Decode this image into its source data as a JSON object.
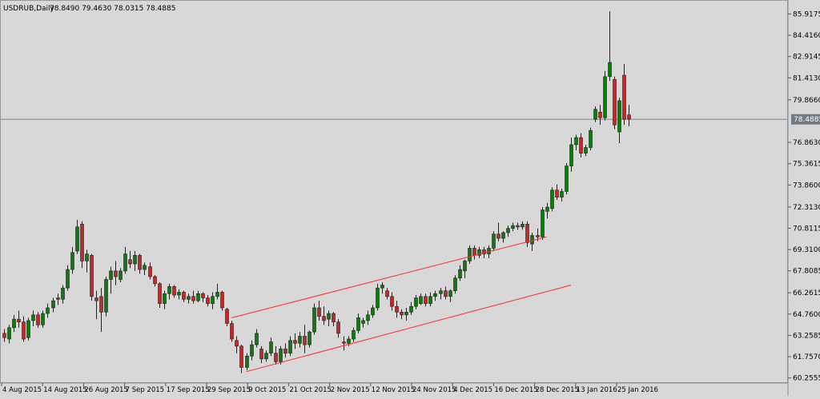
{
  "header": {
    "symbol": "USDRUB,Daily",
    "ohlc": "78.8490 79.4630 78.0315 78.4885"
  },
  "chart_data": {
    "type": "candlestick",
    "title": "USDRUB,Daily",
    "ylim": [
      59.9,
      86.9
    ],
    "current_price": 78.4885,
    "current_price_label": "78.4885",
    "y_ticks": [
      "85.9175",
      "84.4160",
      "82.9145",
      "81.4130",
      "79.8660",
      "76.8630",
      "75.3615",
      "73.8600",
      "72.3130",
      "70.8115",
      "69.3100",
      "67.8085",
      "66.2615",
      "64.7600",
      "63.2585",
      "61.7570",
      "60.2555"
    ],
    "x_ticks": [
      "4 Aug 2015",
      "14 Aug 2015",
      "26 Aug 2015",
      "7 Sep 2015",
      "17 Sep 2015",
      "29 Sep 2015",
      "9 Oct 2015",
      "21 Oct 2015",
      "2 Nov 2015",
      "12 Nov 2015",
      "24 Nov 2015",
      "4 Dec 2015",
      "16 Dec 2015",
      "28 Dec 2015",
      "13 Jan 2016",
      "25 Jan 2016"
    ],
    "colors": {
      "background": "#d8d8d8",
      "bull": "#0c7a0c",
      "bear": "#c02a2a",
      "wick": "#222222",
      "trendline": "#ff2a2a",
      "price_line": "#7a8a94",
      "label_bg": "#6e7b84",
      "label_text": "#ffffff"
    },
    "candles": [
      {
        "o": 63.4,
        "h": 63.7,
        "l": 62.8,
        "c": 63.1
      },
      {
        "o": 63.0,
        "h": 64.0,
        "l": 62.7,
        "c": 63.8
      },
      {
        "o": 63.8,
        "h": 64.7,
        "l": 63.5,
        "c": 64.4
      },
      {
        "o": 64.4,
        "h": 65.0,
        "l": 63.8,
        "c": 64.2
      },
      {
        "o": 64.2,
        "h": 64.6,
        "l": 62.8,
        "c": 63.0
      },
      {
        "o": 63.1,
        "h": 64.5,
        "l": 62.9,
        "c": 64.3
      },
      {
        "o": 64.3,
        "h": 65.0,
        "l": 63.9,
        "c": 64.7
      },
      {
        "o": 64.7,
        "h": 64.9,
        "l": 63.8,
        "c": 64.0
      },
      {
        "o": 64.0,
        "h": 65.0,
        "l": 63.8,
        "c": 64.8
      },
      {
        "o": 64.8,
        "h": 65.5,
        "l": 64.5,
        "c": 65.2
      },
      {
        "o": 65.2,
        "h": 65.9,
        "l": 64.9,
        "c": 65.7
      },
      {
        "o": 65.8,
        "h": 66.2,
        "l": 65.4,
        "c": 65.9
      },
      {
        "o": 65.8,
        "h": 66.8,
        "l": 65.5,
        "c": 66.6
      },
      {
        "o": 66.6,
        "h": 68.2,
        "l": 66.4,
        "c": 67.9
      },
      {
        "o": 67.9,
        "h": 69.5,
        "l": 67.6,
        "c": 69.1
      },
      {
        "o": 69.2,
        "h": 71.4,
        "l": 69.0,
        "c": 70.9
      },
      {
        "o": 71.1,
        "h": 71.3,
        "l": 68.0,
        "c": 68.5
      },
      {
        "o": 68.5,
        "h": 69.3,
        "l": 67.7,
        "c": 69.0
      },
      {
        "o": 68.9,
        "h": 69.0,
        "l": 65.7,
        "c": 66.0
      },
      {
        "o": 65.9,
        "h": 66.4,
        "l": 64.4,
        "c": 65.7
      },
      {
        "o": 66.0,
        "h": 66.6,
        "l": 63.5,
        "c": 64.9
      },
      {
        "o": 64.9,
        "h": 67.4,
        "l": 64.6,
        "c": 67.2
      },
      {
        "o": 67.2,
        "h": 68.1,
        "l": 66.2,
        "c": 67.8
      },
      {
        "o": 67.8,
        "h": 68.5,
        "l": 66.8,
        "c": 67.4
      },
      {
        "o": 67.2,
        "h": 68.0,
        "l": 67.0,
        "c": 67.8
      },
      {
        "o": 67.8,
        "h": 69.5,
        "l": 67.6,
        "c": 69.0
      },
      {
        "o": 68.6,
        "h": 69.2,
        "l": 68.0,
        "c": 68.3
      },
      {
        "o": 68.3,
        "h": 69.2,
        "l": 67.8,
        "c": 68.9
      },
      {
        "o": 68.9,
        "h": 69.0,
        "l": 67.6,
        "c": 67.9
      },
      {
        "o": 67.9,
        "h": 68.4,
        "l": 67.5,
        "c": 68.2
      },
      {
        "o": 68.1,
        "h": 68.4,
        "l": 67.2,
        "c": 67.4
      },
      {
        "o": 67.4,
        "h": 67.5,
        "l": 66.7,
        "c": 66.9
      },
      {
        "o": 66.9,
        "h": 67.0,
        "l": 65.2,
        "c": 65.5
      },
      {
        "o": 65.5,
        "h": 66.4,
        "l": 65.1,
        "c": 66.2
      },
      {
        "o": 66.2,
        "h": 66.9,
        "l": 65.8,
        "c": 66.7
      },
      {
        "o": 66.7,
        "h": 66.8,
        "l": 65.9,
        "c": 66.1
      },
      {
        "o": 66.1,
        "h": 66.5,
        "l": 65.8,
        "c": 66.3
      },
      {
        "o": 66.3,
        "h": 66.4,
        "l": 65.6,
        "c": 65.8
      },
      {
        "o": 65.8,
        "h": 66.2,
        "l": 65.5,
        "c": 66.0
      },
      {
        "o": 66.0,
        "h": 66.4,
        "l": 65.5,
        "c": 65.7
      },
      {
        "o": 65.7,
        "h": 66.4,
        "l": 65.6,
        "c": 66.2
      },
      {
        "o": 66.2,
        "h": 66.3,
        "l": 65.6,
        "c": 65.9
      },
      {
        "o": 65.9,
        "h": 66.1,
        "l": 65.3,
        "c": 65.5
      },
      {
        "o": 65.5,
        "h": 66.3,
        "l": 65.1,
        "c": 66.0
      },
      {
        "o": 66.0,
        "h": 66.9,
        "l": 65.8,
        "c": 66.3
      },
      {
        "o": 66.3,
        "h": 66.4,
        "l": 65.0,
        "c": 65.2
      },
      {
        "o": 65.1,
        "h": 65.2,
        "l": 63.9,
        "c": 64.1
      },
      {
        "o": 64.1,
        "h": 64.3,
        "l": 62.8,
        "c": 63.0
      },
      {
        "o": 62.9,
        "h": 63.2,
        "l": 62.0,
        "c": 62.5
      },
      {
        "o": 62.5,
        "h": 62.6,
        "l": 60.6,
        "c": 61.0
      },
      {
        "o": 61.0,
        "h": 62.0,
        "l": 60.8,
        "c": 61.8
      },
      {
        "o": 61.8,
        "h": 62.9,
        "l": 61.5,
        "c": 62.6
      },
      {
        "o": 62.6,
        "h": 63.7,
        "l": 62.4,
        "c": 63.4
      },
      {
        "o": 62.3,
        "h": 62.5,
        "l": 61.3,
        "c": 61.6
      },
      {
        "o": 61.6,
        "h": 62.2,
        "l": 61.4,
        "c": 62.0
      },
      {
        "o": 62.0,
        "h": 63.1,
        "l": 61.8,
        "c": 62.8
      },
      {
        "o": 62.0,
        "h": 62.5,
        "l": 61.2,
        "c": 61.4
      },
      {
        "o": 61.4,
        "h": 62.5,
        "l": 61.2,
        "c": 62.3
      },
      {
        "o": 62.3,
        "h": 62.7,
        "l": 61.7,
        "c": 62.0
      },
      {
        "o": 62.0,
        "h": 63.2,
        "l": 61.8,
        "c": 62.9
      },
      {
        "o": 62.9,
        "h": 63.4,
        "l": 62.3,
        "c": 62.7
      },
      {
        "o": 62.7,
        "h": 63.5,
        "l": 62.4,
        "c": 63.2
      },
      {
        "o": 63.2,
        "h": 64.0,
        "l": 62.0,
        "c": 62.6
      },
      {
        "o": 62.6,
        "h": 63.6,
        "l": 62.4,
        "c": 63.5
      },
      {
        "o": 63.5,
        "h": 65.5,
        "l": 63.3,
        "c": 65.2
      },
      {
        "o": 65.2,
        "h": 65.7,
        "l": 64.3,
        "c": 64.6
      },
      {
        "o": 64.6,
        "h": 65.3,
        "l": 64.0,
        "c": 64.3
      },
      {
        "o": 64.4,
        "h": 65.0,
        "l": 63.9,
        "c": 64.8
      },
      {
        "o": 64.8,
        "h": 64.9,
        "l": 63.9,
        "c": 64.2
      },
      {
        "o": 64.2,
        "h": 64.4,
        "l": 63.1,
        "c": 63.4
      },
      {
        "o": 62.8,
        "h": 63.2,
        "l": 62.2,
        "c": 62.7
      },
      {
        "o": 62.7,
        "h": 63.2,
        "l": 62.5,
        "c": 63.0
      },
      {
        "o": 63.0,
        "h": 63.8,
        "l": 62.8,
        "c": 63.6
      },
      {
        "o": 63.6,
        "h": 64.8,
        "l": 63.4,
        "c": 64.5
      },
      {
        "o": 64.1,
        "h": 64.5,
        "l": 63.8,
        "c": 64.3
      },
      {
        "o": 64.3,
        "h": 65.0,
        "l": 64.0,
        "c": 64.7
      },
      {
        "o": 64.7,
        "h": 65.4,
        "l": 64.5,
        "c": 65.2
      },
      {
        "o": 65.2,
        "h": 66.9,
        "l": 65.0,
        "c": 66.6
      },
      {
        "o": 66.6,
        "h": 67.0,
        "l": 66.2,
        "c": 66.8
      },
      {
        "o": 66.4,
        "h": 66.6,
        "l": 65.8,
        "c": 66.0
      },
      {
        "o": 66.0,
        "h": 66.3,
        "l": 65.0,
        "c": 65.3
      },
      {
        "o": 65.3,
        "h": 65.7,
        "l": 64.5,
        "c": 64.9
      },
      {
        "o": 64.9,
        "h": 65.1,
        "l": 64.4,
        "c": 64.7
      },
      {
        "o": 64.7,
        "h": 65.2,
        "l": 64.3,
        "c": 64.9
      },
      {
        "o": 64.9,
        "h": 65.6,
        "l": 64.7,
        "c": 65.3
      },
      {
        "o": 65.3,
        "h": 66.1,
        "l": 65.1,
        "c": 65.9
      },
      {
        "o": 65.5,
        "h": 66.2,
        "l": 65.4,
        "c": 66.0
      },
      {
        "o": 66.0,
        "h": 66.2,
        "l": 65.3,
        "c": 65.5
      },
      {
        "o": 65.5,
        "h": 66.3,
        "l": 65.3,
        "c": 66.0
      },
      {
        "o": 66.0,
        "h": 66.4,
        "l": 65.7,
        "c": 66.2
      },
      {
        "o": 66.2,
        "h": 66.6,
        "l": 65.8,
        "c": 66.4
      },
      {
        "o": 66.4,
        "h": 66.7,
        "l": 65.8,
        "c": 66.0
      },
      {
        "o": 66.0,
        "h": 66.5,
        "l": 65.6,
        "c": 66.4
      },
      {
        "o": 66.4,
        "h": 67.5,
        "l": 66.2,
        "c": 67.3
      },
      {
        "o": 67.3,
        "h": 68.2,
        "l": 67.1,
        "c": 67.9
      },
      {
        "o": 67.8,
        "h": 68.6,
        "l": 67.3,
        "c": 68.5
      },
      {
        "o": 68.5,
        "h": 69.6,
        "l": 68.3,
        "c": 69.4
      },
      {
        "o": 69.4,
        "h": 69.6,
        "l": 68.6,
        "c": 68.9
      },
      {
        "o": 68.9,
        "h": 69.5,
        "l": 68.7,
        "c": 69.3
      },
      {
        "o": 69.3,
        "h": 69.5,
        "l": 68.7,
        "c": 69.0
      },
      {
        "o": 69.0,
        "h": 69.6,
        "l": 68.7,
        "c": 69.4
      },
      {
        "o": 69.4,
        "h": 70.6,
        "l": 69.2,
        "c": 70.4
      },
      {
        "o": 70.4,
        "h": 71.2,
        "l": 69.9,
        "c": 70.1
      },
      {
        "o": 70.1,
        "h": 70.6,
        "l": 69.8,
        "c": 70.5
      },
      {
        "o": 70.5,
        "h": 71.0,
        "l": 70.2,
        "c": 70.8
      },
      {
        "o": 70.8,
        "h": 71.2,
        "l": 70.6,
        "c": 71.0
      },
      {
        "o": 71.0,
        "h": 71.2,
        "l": 70.7,
        "c": 70.9
      },
      {
        "o": 70.9,
        "h": 71.3,
        "l": 70.7,
        "c": 71.1
      },
      {
        "o": 71.1,
        "h": 71.3,
        "l": 69.5,
        "c": 69.8
      },
      {
        "o": 69.7,
        "h": 70.5,
        "l": 69.2,
        "c": 70.3
      },
      {
        "o": 70.3,
        "h": 70.8,
        "l": 69.9,
        "c": 70.2
      },
      {
        "o": 70.2,
        "h": 72.3,
        "l": 70.0,
        "c": 72.1
      },
      {
        "o": 72.0,
        "h": 72.6,
        "l": 71.5,
        "c": 72.3
      },
      {
        "o": 72.2,
        "h": 73.7,
        "l": 72.0,
        "c": 73.5
      },
      {
        "o": 73.5,
        "h": 73.9,
        "l": 72.8,
        "c": 73.0
      },
      {
        "o": 73.0,
        "h": 73.6,
        "l": 72.7,
        "c": 73.4
      },
      {
        "o": 73.4,
        "h": 75.4,
        "l": 73.2,
        "c": 75.2
      },
      {
        "o": 75.2,
        "h": 77.2,
        "l": 74.8,
        "c": 76.7
      },
      {
        "o": 76.7,
        "h": 77.4,
        "l": 76.3,
        "c": 77.2
      },
      {
        "o": 77.2,
        "h": 77.5,
        "l": 75.8,
        "c": 76.1
      },
      {
        "o": 76.1,
        "h": 76.7,
        "l": 75.9,
        "c": 76.5
      },
      {
        "o": 76.5,
        "h": 77.9,
        "l": 76.3,
        "c": 77.7
      },
      {
        "o": 78.5,
        "h": 79.4,
        "l": 78.3,
        "c": 79.2
      },
      {
        "o": 79.0,
        "h": 79.5,
        "l": 78.1,
        "c": 78.6
      },
      {
        "o": 78.6,
        "h": 81.9,
        "l": 78.4,
        "c": 81.5
      },
      {
        "o": 81.5,
        "h": 86.1,
        "l": 81.2,
        "c": 82.5
      },
      {
        "o": 81.3,
        "h": 81.5,
        "l": 77.8,
        "c": 78.1
      },
      {
        "o": 77.6,
        "h": 80.0,
        "l": 76.8,
        "c": 79.8
      },
      {
        "o": 81.6,
        "h": 82.4,
        "l": 78.1,
        "c": 78.5
      },
      {
        "o": 78.8,
        "h": 79.5,
        "l": 78.0,
        "c": 78.5
      }
    ],
    "trendlines": [
      {
        "start": {
          "index": 47,
          "price": 64.5
        },
        "end": {
          "index": 112,
          "price": 70.2
        }
      },
      {
        "start": {
          "index": 50,
          "price": 60.7
        },
        "end": {
          "index": 117,
          "price": 66.8
        }
      }
    ]
  }
}
